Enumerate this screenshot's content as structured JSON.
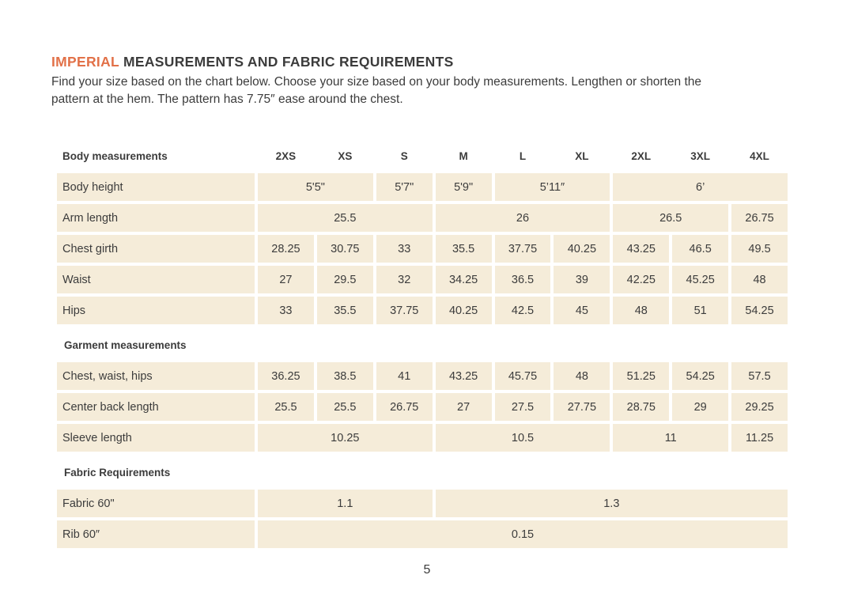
{
  "page": {
    "title_highlight": "IMPERIAL",
    "title_rest": "MEASUREMENTS AND FABRIC REQUIREMENTS",
    "intro_line1": "Find your size based on the chart below. Choose your size based on your body measurements. Lengthen or shorten the",
    "intro_line2": "pattern at the hem. The pattern has 7.75″ ease around the chest.",
    "page_number": "5"
  },
  "colors": {
    "accent": "#e27148",
    "cell_background": "#f5ecd9",
    "text": "#3c3c3c"
  },
  "table": {
    "header_label": "Body measurements",
    "sizes": [
      "2XS",
      "XS",
      "S",
      "M",
      "L",
      "XL",
      "2XL",
      "3XL",
      "4XL"
    ],
    "sections": [
      {
        "title": "",
        "rows": [
          {
            "label": "Body height",
            "cells": [
              {
                "span": 2,
                "value": "5'5\""
              },
              {
                "span": 1,
                "value": "5'7\""
              },
              {
                "span": 1,
                "value": "5'9\""
              },
              {
                "span": 2,
                "value": "5’11″"
              },
              {
                "span": 3,
                "value": "6’"
              }
            ]
          },
          {
            "label": "Arm length",
            "cells": [
              {
                "span": 3,
                "value": "25.5"
              },
              {
                "span": 3,
                "value": "26"
              },
              {
                "span": 2,
                "value": "26.5"
              },
              {
                "span": 1,
                "value": "26.75"
              }
            ]
          },
          {
            "label": "Chest girth",
            "cells": [
              {
                "span": 1,
                "value": "28.25"
              },
              {
                "span": 1,
                "value": "30.75"
              },
              {
                "span": 1,
                "value": "33"
              },
              {
                "span": 1,
                "value": "35.5"
              },
              {
                "span": 1,
                "value": "37.75"
              },
              {
                "span": 1,
                "value": "40.25"
              },
              {
                "span": 1,
                "value": "43.25"
              },
              {
                "span": 1,
                "value": "46.5"
              },
              {
                "span": 1,
                "value": "49.5"
              }
            ]
          },
          {
            "label": "Waist",
            "cells": [
              {
                "span": 1,
                "value": "27"
              },
              {
                "span": 1,
                "value": "29.5"
              },
              {
                "span": 1,
                "value": "32"
              },
              {
                "span": 1,
                "value": "34.25"
              },
              {
                "span": 1,
                "value": "36.5"
              },
              {
                "span": 1,
                "value": "39"
              },
              {
                "span": 1,
                "value": "42.25"
              },
              {
                "span": 1,
                "value": "45.25"
              },
              {
                "span": 1,
                "value": "48"
              }
            ]
          },
          {
            "label": "Hips",
            "cells": [
              {
                "span": 1,
                "value": "33"
              },
              {
                "span": 1,
                "value": "35.5"
              },
              {
                "span": 1,
                "value": "37.75"
              },
              {
                "span": 1,
                "value": "40.25"
              },
              {
                "span": 1,
                "value": "42.5"
              },
              {
                "span": 1,
                "value": "45"
              },
              {
                "span": 1,
                "value": "48"
              },
              {
                "span": 1,
                "value": "51"
              },
              {
                "span": 1,
                "value": "54.25"
              }
            ]
          }
        ]
      },
      {
        "title": "Garment measurements",
        "rows": [
          {
            "label": "Chest, waist, hips",
            "cells": [
              {
                "span": 1,
                "value": "36.25"
              },
              {
                "span": 1,
                "value": "38.5"
              },
              {
                "span": 1,
                "value": "41"
              },
              {
                "span": 1,
                "value": "43.25"
              },
              {
                "span": 1,
                "value": "45.75"
              },
              {
                "span": 1,
                "value": "48"
              },
              {
                "span": 1,
                "value": "51.25"
              },
              {
                "span": 1,
                "value": "54.25"
              },
              {
                "span": 1,
                "value": "57.5"
              }
            ]
          },
          {
            "label": "Center back length",
            "cells": [
              {
                "span": 1,
                "value": "25.5"
              },
              {
                "span": 1,
                "value": "25.5"
              },
              {
                "span": 1,
                "value": "26.75"
              },
              {
                "span": 1,
                "value": "27"
              },
              {
                "span": 1,
                "value": "27.5"
              },
              {
                "span": 1,
                "value": "27.75"
              },
              {
                "span": 1,
                "value": "28.75"
              },
              {
                "span": 1,
                "value": "29"
              },
              {
                "span": 1,
                "value": "29.25"
              }
            ]
          },
          {
            "label": "Sleeve length",
            "cells": [
              {
                "span": 3,
                "value": "10.25"
              },
              {
                "span": 3,
                "value": "10.5"
              },
              {
                "span": 2,
                "value": "11"
              },
              {
                "span": 1,
                "value": "11.25"
              }
            ]
          }
        ]
      },
      {
        "title": "Fabric Requirements",
        "rows": [
          {
            "label": "Fabric 60\"",
            "cells": [
              {
                "span": 3,
                "value": "1.1"
              },
              {
                "span": 6,
                "value": "1.3"
              }
            ]
          },
          {
            "label": "Rib 60″",
            "cells": [
              {
                "span": 9,
                "value": "0.15"
              }
            ]
          }
        ]
      }
    ]
  }
}
